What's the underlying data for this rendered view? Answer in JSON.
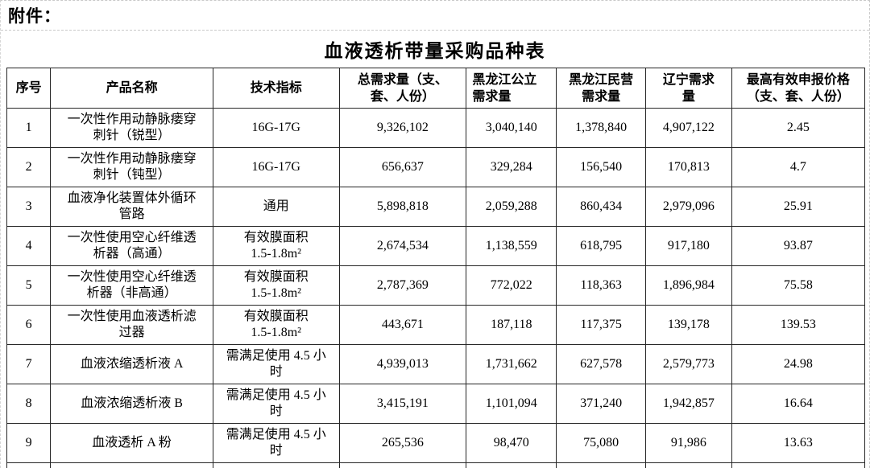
{
  "page": {
    "attachment_label": "附件：",
    "title": "血液透析带量采购品种表"
  },
  "table": {
    "columns": [
      {
        "key": "index",
        "label": "序号",
        "width": "5.1%"
      },
      {
        "key": "product",
        "label": "产品名称",
        "width": "18.9%"
      },
      {
        "key": "spec",
        "label": "技术指标",
        "width": "14.7%"
      },
      {
        "key": "total",
        "label": "总需求量（支、\n套、人份）",
        "width": "14.8%"
      },
      {
        "key": "hlj_public",
        "label": "黑龙江公立\n需求量",
        "width": "10.5%"
      },
      {
        "key": "hlj_private",
        "label": "黑龙江民营\n需求量",
        "width": "10.4%"
      },
      {
        "key": "liaoning",
        "label": "辽宁需求\n量",
        "width": "10.0%"
      },
      {
        "key": "max_price",
        "label": "最高有效申报价格\n（支、套、人份）",
        "width": "15.5%"
      }
    ],
    "rows": [
      {
        "index": "1",
        "product": "一次性作用动静脉瘘穿\n刺针（锐型）",
        "spec": "16G-17G",
        "total": "9,326,102",
        "hlj_public": "3,040,140",
        "hlj_private": "1,378,840",
        "liaoning": "4,907,122",
        "max_price": "2.45"
      },
      {
        "index": "2",
        "product": "一次性作用动静脉瘘穿\n刺针（钝型）",
        "spec": "16G-17G",
        "total": "656,637",
        "hlj_public": "329,284",
        "hlj_private": "156,540",
        "liaoning": "170,813",
        "max_price": "4.7"
      },
      {
        "index": "3",
        "product": "血液净化装置体外循环\n管路",
        "spec": "通用",
        "total": "5,898,818",
        "hlj_public": "2,059,288",
        "hlj_private": "860,434",
        "liaoning": "2,979,096",
        "max_price": "25.91"
      },
      {
        "index": "4",
        "product": "一次性使用空心纤维透\n析器（高通）",
        "spec": "有效膜面积\n1.5-1.8m²",
        "total": "2,674,534",
        "hlj_public": "1,138,559",
        "hlj_private": "618,795",
        "liaoning": "917,180",
        "max_price": "93.87"
      },
      {
        "index": "5",
        "product": "一次性使用空心纤维透\n析器（非高通）",
        "spec": "有效膜面积\n1.5-1.8m²",
        "total": "2,787,369",
        "hlj_public": "772,022",
        "hlj_private": "118,363",
        "liaoning": "1,896,984",
        "max_price": "75.58"
      },
      {
        "index": "6",
        "product": "一次性使用血液透析滤\n过器",
        "spec": "有效膜面积\n1.5-1.8m²",
        "total": "443,671",
        "hlj_public": "187,118",
        "hlj_private": "117,375",
        "liaoning": "139,178",
        "max_price": "139.53"
      },
      {
        "index": "7",
        "product": "血液浓缩透析液 A",
        "spec": "需满足使用 4.5 小\n时",
        "total": "4,939,013",
        "hlj_public": "1,731,662",
        "hlj_private": "627,578",
        "liaoning": "2,579,773",
        "max_price": "24.98"
      },
      {
        "index": "8",
        "product": "血液浓缩透析液 B",
        "spec": "需满足使用 4.5 小\n时",
        "total": "3,415,191",
        "hlj_public": "1,101,094",
        "hlj_private": "371,240",
        "liaoning": "1,942,857",
        "max_price": "16.64"
      },
      {
        "index": "9",
        "product": "血液透析 A 粉",
        "spec": "需满足使用 4.5 小\n时",
        "total": "265,536",
        "hlj_public": "98,470",
        "hlj_private": "75,080",
        "liaoning": "91,986",
        "max_price": "13.63",
        "align": {
          "liaoning": "right"
        }
      }
    ]
  }
}
